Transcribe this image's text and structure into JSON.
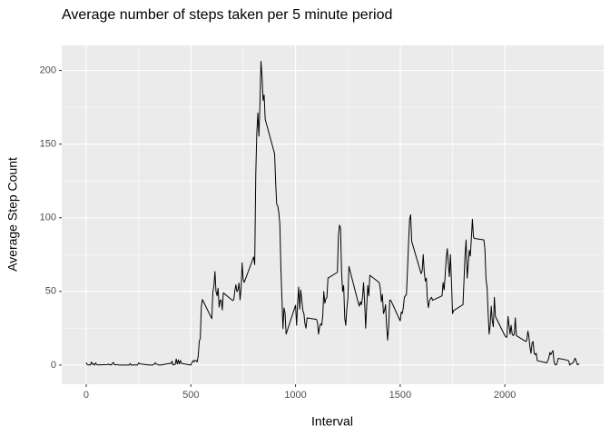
{
  "chart_data": {
    "type": "line",
    "title": "Average number of steps taken per 5 minute period",
    "x_label": "Interval",
    "y_label": "Average Step Count",
    "x": [
      0,
      5,
      10,
      15,
      20,
      25,
      30,
      35,
      40,
      45,
      50,
      55,
      100,
      105,
      110,
      115,
      120,
      125,
      130,
      135,
      140,
      145,
      150,
      155,
      200,
      205,
      210,
      215,
      220,
      225,
      230,
      235,
      240,
      245,
      250,
      255,
      300,
      305,
      310,
      315,
      320,
      325,
      330,
      335,
      340,
      345,
      350,
      355,
      400,
      405,
      410,
      415,
      420,
      425,
      430,
      435,
      440,
      445,
      450,
      455,
      500,
      505,
      510,
      515,
      520,
      525,
      530,
      535,
      540,
      545,
      550,
      555,
      600,
      605,
      610,
      615,
      620,
      625,
      630,
      635,
      640,
      645,
      650,
      655,
      700,
      705,
      710,
      715,
      720,
      725,
      730,
      735,
      740,
      745,
      750,
      755,
      800,
      805,
      810,
      815,
      820,
      825,
      830,
      835,
      840,
      845,
      850,
      855,
      900,
      905,
      910,
      915,
      920,
      925,
      930,
      935,
      940,
      945,
      950,
      955,
      1000,
      1005,
      1010,
      1015,
      1020,
      1025,
      1030,
      1035,
      1040,
      1045,
      1050,
      1055,
      1100,
      1105,
      1110,
      1115,
      1120,
      1125,
      1130,
      1135,
      1140,
      1145,
      1150,
      1155,
      1200,
      1205,
      1210,
      1215,
      1220,
      1225,
      1230,
      1235,
      1240,
      1245,
      1250,
      1255,
      1300,
      1305,
      1310,
      1315,
      1320,
      1325,
      1330,
      1335,
      1340,
      1345,
      1350,
      1355,
      1400,
      1405,
      1410,
      1415,
      1420,
      1425,
      1430,
      1435,
      1440,
      1445,
      1450,
      1455,
      1500,
      1505,
      1510,
      1515,
      1520,
      1525,
      1530,
      1535,
      1540,
      1545,
      1550,
      1555,
      1600,
      1605,
      1610,
      1615,
      1620,
      1625,
      1630,
      1635,
      1640,
      1645,
      1650,
      1655,
      1700,
      1705,
      1710,
      1715,
      1720,
      1725,
      1730,
      1735,
      1740,
      1745,
      1750,
      1755,
      1800,
      1805,
      1810,
      1815,
      1820,
      1825,
      1830,
      1835,
      1840,
      1845,
      1850,
      1855,
      1900,
      1905,
      1910,
      1915,
      1920,
      1925,
      1930,
      1935,
      1940,
      1945,
      1950,
      1955,
      2000,
      2005,
      2010,
      2015,
      2020,
      2025,
      2030,
      2035,
      2040,
      2045,
      2050,
      2055,
      2100,
      2105,
      2110,
      2115,
      2120,
      2125,
      2130,
      2135,
      2140,
      2145,
      2150,
      2155,
      2200,
      2205,
      2210,
      2215,
      2220,
      2225,
      2230,
      2235,
      2240,
      2245,
      2250,
      2255,
      2300,
      2305,
      2310,
      2315,
      2320,
      2325,
      2330,
      2335,
      2340,
      2345,
      2350,
      2355
    ],
    "series": [
      {
        "name": "Average Step Count",
        "color": "#000000",
        "values": [
          1.7,
          0.3,
          0.1,
          0.2,
          0.1,
          2.1,
          0.5,
          0.9,
          0,
          1.5,
          0.3,
          0.1,
          0.3,
          0.7,
          0.2,
          0.3,
          0,
          1.1,
          1.8,
          0.2,
          0.2,
          0.3,
          0.3,
          0,
          0,
          0,
          1.1,
          0,
          0,
          0.1,
          0,
          0.2,
          0,
          0,
          1.5,
          0.9,
          0,
          0,
          0,
          0,
          0.2,
          0.6,
          1.6,
          0.6,
          0.5,
          0.1,
          0,
          0,
          1.2,
          0.9,
          2.6,
          0,
          0.3,
          0.4,
          4.1,
          0.7,
          3.5,
          0.8,
          3.1,
          1.1,
          0,
          1.6,
          3,
          2.2,
          3.3,
          3,
          2.1,
          6.1,
          16,
          18.3,
          39.5,
          44.5,
          31.5,
          49.3,
          53.8,
          63.5,
          50,
          47.1,
          52.2,
          39.3,
          44,
          44.2,
          37.4,
          49,
          43.8,
          44.4,
          50.5,
          54.5,
          49.9,
          51,
          55.7,
          44.3,
          52.3,
          69.5,
          57.8,
          56.2,
          73.4,
          68.2,
          129.4,
          157.5,
          171.2,
          155.4,
          177.3,
          206.2,
          195.9,
          179.6,
          183.4,
          167,
          143.5,
          124,
          109.1,
          108.1,
          103.7,
          95.9,
          66.2,
          45.2,
          24.8,
          38.8,
          35,
          21,
          40.6,
          27,
          42,
          53,
          38,
          51,
          44,
          37,
          35,
          28,
          25,
          32,
          31,
          29,
          21,
          26,
          28,
          27,
          33,
          50,
          42,
          45,
          46,
          59,
          63,
          88,
          95,
          93,
          63,
          50,
          54,
          32,
          27,
          38,
          45,
          67,
          42,
          40,
          43,
          41,
          46,
          56,
          43,
          25,
          40,
          54,
          47,
          61,
          56,
          52,
          43,
          48,
          35,
          37,
          41,
          27,
          17,
          26,
          44,
          44,
          30,
          36,
          35,
          39,
          46,
          47,
          48,
          65,
          83,
          99,
          102,
          84,
          62,
          64,
          75,
          63,
          57,
          59,
          44,
          39,
          44,
          45,
          46,
          44,
          47,
          56,
          51,
          61,
          73,
          79,
          69,
          60,
          75,
          57,
          35,
          37,
          41,
          58,
          75,
          85,
          59,
          68,
          78,
          74,
          86,
          99,
          87,
          86,
          85,
          78,
          58,
          53,
          36,
          21,
          27,
          40,
          30,
          26,
          46,
          33,
          20,
          19,
          19,
          33,
          27,
          21,
          27,
          21,
          20,
          21,
          32,
          20,
          16,
          17,
          23,
          19,
          12,
          8,
          15,
          16,
          8,
          7,
          8,
          3,
          1.5,
          3,
          4.8,
          8.5,
          7.1,
          8.7,
          9.8,
          2.2,
          0.3,
          0.1,
          1.6,
          4.6,
          3.3,
          2.8,
          0,
          0.8,
          1,
          1.6,
          2.6,
          4.7,
          3.3,
          0.6,
          0.2,
          1.1
        ]
      }
    ],
    "xlim": [
      -117,
      2472
    ],
    "ylim": [
      -13,
      217
    ],
    "xticks": [
      0,
      500,
      1000,
      1500,
      2000
    ],
    "yticks": [
      0,
      50,
      100,
      150,
      200
    ],
    "grid": true
  }
}
